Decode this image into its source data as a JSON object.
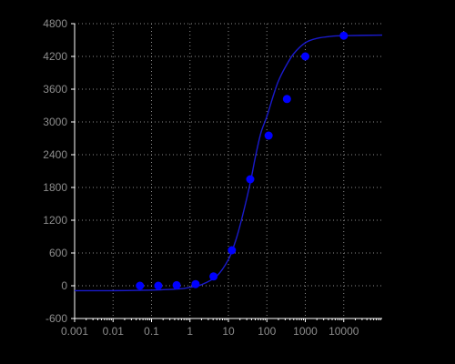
{
  "chart_data": {
    "type": "scatter",
    "title": "",
    "xlabel": "",
    "ylabel": "",
    "x_scale": "log",
    "xlim": [
      0.001,
      100000
    ],
    "ylim": [
      -600,
      4800
    ],
    "x_ticks": [
      0.001,
      0.01,
      0.1,
      1,
      10,
      100,
      1000,
      10000
    ],
    "x_tick_labels": [
      "0.001",
      "0.01",
      "0.1",
      "1",
      "10",
      "100",
      "1000",
      "10000"
    ],
    "y_ticks": [
      -600,
      0,
      600,
      1200,
      1800,
      2400,
      3000,
      3600,
      4200,
      4800
    ],
    "y_tick_labels": [
      "-600",
      "0",
      "600",
      "1200",
      "1800",
      "2400",
      "3000",
      "3600",
      "4200",
      "4800"
    ],
    "grid": true,
    "series": [
      {
        "kind": "points",
        "x": [
          0.05,
          0.15,
          0.45,
          1.4,
          4.1,
          12.3,
          37,
          111,
          333,
          1000,
          10000
        ],
        "y": [
          0,
          0,
          10,
          30,
          170,
          650,
          1950,
          2750,
          3420,
          4200,
          4580
        ]
      },
      {
        "kind": "fit-curve",
        "x": [
          0.001,
          0.01,
          0.1,
          0.5,
          1,
          2,
          5,
          10,
          15,
          20,
          30,
          40,
          50,
          70,
          100,
          150,
          200,
          300,
          500,
          1000,
          2000,
          5000,
          10000,
          100000
        ],
        "y": [
          -90,
          -90,
          -80,
          -60,
          -30,
          20,
          180,
          480,
          800,
          1100,
          1600,
          2000,
          2350,
          2800,
          3100,
          3500,
          3750,
          4000,
          4250,
          4450,
          4530,
          4570,
          4580,
          4590
        ]
      }
    ],
    "colors": {
      "background": "#000000",
      "axis": "#ffffff",
      "grid": "#8c8c8c",
      "tick_label": "#8c8c8c",
      "points": "#0000ff",
      "curve": "#1a1acc"
    }
  }
}
